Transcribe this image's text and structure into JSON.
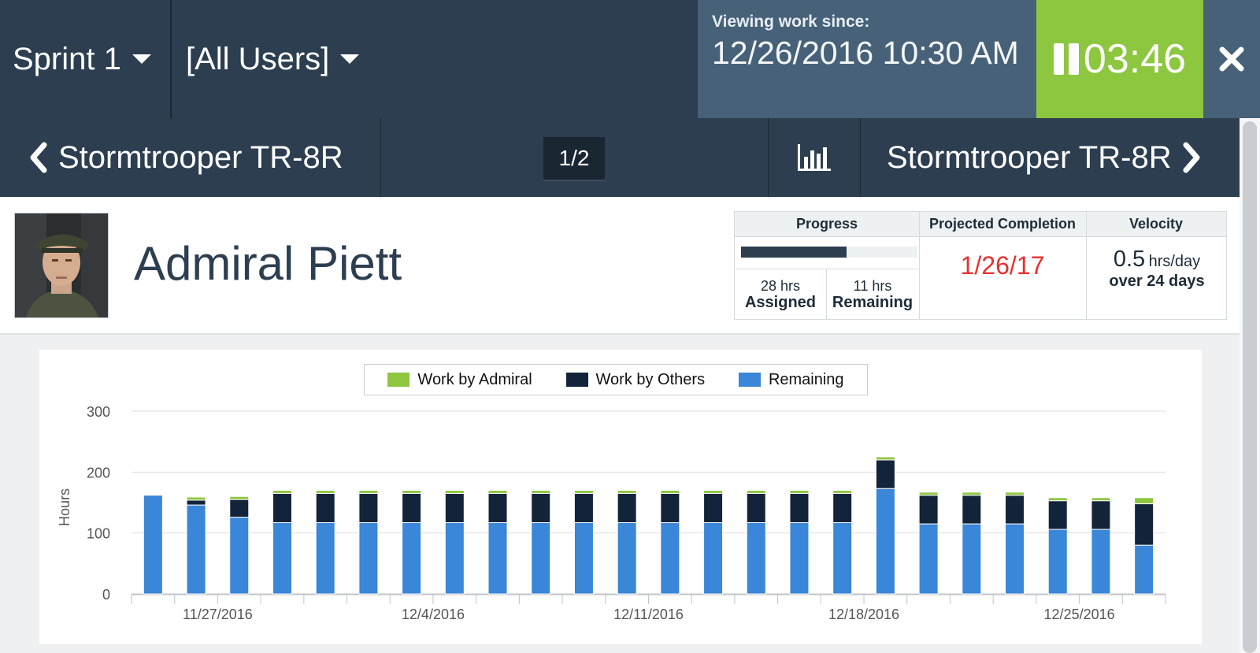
{
  "header": {
    "sprint": "Sprint 1",
    "users": "[All Users]",
    "viewing_label": "Viewing work since:",
    "viewing_value": "12/26/2016 10:30 AM",
    "timer": "03:46"
  },
  "nav": {
    "prev_label": "Stormtrooper TR-8R",
    "pager": "1/2",
    "next_label": "Stormtrooper TR-8R"
  },
  "profile": {
    "name": "Admiral Piett",
    "progress": {
      "label": "Progress",
      "fraction": 0.6,
      "assigned_value": "28 hrs",
      "assigned_label": "Assigned",
      "remaining_value": "11 hrs",
      "remaining_label": "Remaining"
    },
    "projected": {
      "label": "Projected Completion",
      "value": "1/26/17"
    },
    "velocity": {
      "label": "Velocity",
      "value": "0.5",
      "unit": "hrs/day",
      "sub": "over 24 days"
    }
  },
  "colors": {
    "admiral": "#8dc63f",
    "others": "#13243a",
    "remaining": "#3a86d8",
    "timer_bg": "#8dc63f"
  },
  "chart_data": {
    "type": "bar",
    "stacked": true,
    "ylabel": "Hours",
    "ylim": [
      0,
      300
    ],
    "yticks": [
      0,
      100,
      200,
      300
    ],
    "x_tick_labels": [
      "11/27/2016",
      "12/4/2016",
      "12/11/2016",
      "12/18/2016",
      "12/25/2016"
    ],
    "x_tick_label_after_bar_index": [
      1,
      6,
      11,
      16,
      21
    ],
    "legend": [
      "Work by Admiral",
      "Work by Others",
      "Remaining"
    ],
    "series": [
      {
        "name": "Remaining",
        "values": [
          162,
          146,
          126,
          117,
          117,
          117,
          117,
          117,
          117,
          117,
          117,
          117,
          117,
          117,
          117,
          117,
          117,
          173,
          115,
          115,
          115,
          106,
          106,
          80
        ]
      },
      {
        "name": "Work by Others",
        "values": [
          0,
          8,
          29,
          48,
          48,
          48,
          48,
          48,
          48,
          48,
          48,
          48,
          48,
          48,
          48,
          48,
          48,
          47,
          47,
          47,
          47,
          47,
          47,
          68
        ]
      },
      {
        "name": "Work by Admiral",
        "values": [
          0,
          5,
          5,
          5,
          5,
          5,
          5,
          5,
          5,
          5,
          5,
          5,
          5,
          5,
          5,
          5,
          5,
          5,
          5,
          5,
          5,
          5,
          5,
          10
        ]
      }
    ]
  }
}
